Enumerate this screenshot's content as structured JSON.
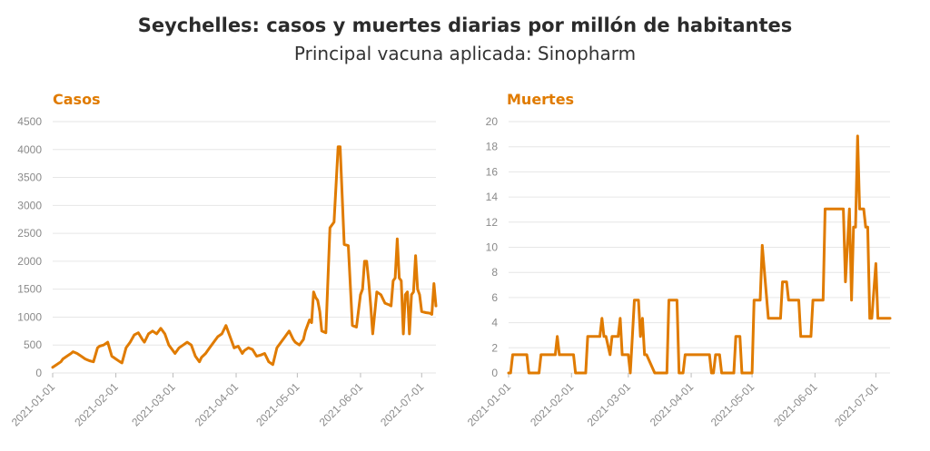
{
  "title": "Seychelles: casos y muertes diarias por millón de habitantes",
  "subtitle": "Principal vacuna aplicada: Sinopharm",
  "accent_color": "#e07b00",
  "chart_data": [
    {
      "type": "line",
      "title": "Casos",
      "color": "#e07b00",
      "ylim": [
        0,
        4500
      ],
      "yticks": [
        0,
        500,
        1000,
        1500,
        2000,
        2500,
        3000,
        3500,
        4000,
        4500
      ],
      "xlim": [
        "2021-01-01",
        "2021-07-08"
      ],
      "xticks": [
        "2021-01-01",
        "2021-02-01",
        "2021-03-01",
        "2021-04-01",
        "2021-05-01",
        "2021-06-01",
        "2021-07-01"
      ],
      "x": [
        "2021-01-01",
        "2021-01-03",
        "2021-01-05",
        "2021-01-06",
        "2021-01-08",
        "2021-01-10",
        "2021-01-11",
        "2021-01-13",
        "2021-01-15",
        "2021-01-17",
        "2021-01-19",
        "2021-01-21",
        "2021-01-23",
        "2021-01-24",
        "2021-01-26",
        "2021-01-28",
        "2021-01-30",
        "2021-02-01",
        "2021-02-03",
        "2021-02-04",
        "2021-02-06",
        "2021-02-08",
        "2021-02-10",
        "2021-02-12",
        "2021-02-14",
        "2021-02-15",
        "2021-02-17",
        "2021-02-19",
        "2021-02-21",
        "2021-02-23",
        "2021-02-25",
        "2021-02-27",
        "2021-03-01",
        "2021-03-02",
        "2021-03-04",
        "2021-03-06",
        "2021-03-08",
        "2021-03-10",
        "2021-03-12",
        "2021-03-14",
        "2021-03-15",
        "2021-03-17",
        "2021-03-19",
        "2021-03-21",
        "2021-03-23",
        "2021-03-25",
        "2021-03-27",
        "2021-03-29",
        "2021-03-31",
        "2021-04-02",
        "2021-04-04",
        "2021-04-05",
        "2021-04-07",
        "2021-04-09",
        "2021-04-11",
        "2021-04-13",
        "2021-04-15",
        "2021-04-17",
        "2021-04-19",
        "2021-04-21",
        "2021-04-23",
        "2021-04-25",
        "2021-04-27",
        "2021-04-29",
        "2021-04-30",
        "2021-05-02",
        "2021-05-04",
        "2021-05-05",
        "2021-05-07",
        "2021-05-08",
        "2021-05-09",
        "2021-05-10",
        "2021-05-11",
        "2021-05-12",
        "2021-05-13",
        "2021-05-15",
        "2021-05-17",
        "2021-05-19",
        "2021-05-21",
        "2021-05-22",
        "2021-05-24",
        "2021-05-26",
        "2021-05-28",
        "2021-05-30",
        "2021-06-01",
        "2021-06-02",
        "2021-06-03",
        "2021-06-04",
        "2021-06-05",
        "2021-06-06",
        "2021-06-07",
        "2021-06-09",
        "2021-06-11",
        "2021-06-13",
        "2021-06-15",
        "2021-06-16",
        "2021-06-17",
        "2021-06-18",
        "2021-06-19",
        "2021-06-20",
        "2021-06-21",
        "2021-06-22",
        "2021-06-23",
        "2021-06-24",
        "2021-06-25",
        "2021-06-26",
        "2021-06-27",
        "2021-06-28",
        "2021-06-29",
        "2021-06-30",
        "2021-07-01",
        "2021-07-03",
        "2021-07-05",
        "2021-07-06",
        "2021-07-07",
        "2021-07-08"
      ],
      "y": [
        100,
        150,
        200,
        250,
        300,
        350,
        380,
        350,
        300,
        250,
        220,
        200,
        450,
        480,
        500,
        550,
        300,
        250,
        200,
        180,
        450,
        550,
        680,
        720,
        600,
        550,
        700,
        750,
        700,
        800,
        700,
        500,
        400,
        350,
        450,
        500,
        550,
        500,
        300,
        200,
        280,
        350,
        450,
        550,
        650,
        700,
        850,
        650,
        450,
        480,
        350,
        400,
        450,
        420,
        300,
        320,
        350,
        200,
        150,
        450,
        550,
        650,
        750,
        600,
        550,
        500,
        600,
        750,
        950,
        900,
        1450,
        1350,
        1300,
        1100,
        750,
        720,
        2600,
        2700,
        4050,
        4050,
        2300,
        2280,
        850,
        820,
        1400,
        1500,
        2000,
        2000,
        1650,
        1200,
        700,
        1450,
        1400,
        1250,
        1220,
        1200,
        1650,
        1700,
        2400,
        1700,
        1650,
        700,
        1400,
        1450,
        700,
        1400,
        1450,
        2100,
        1500,
        1400,
        1100,
        1080,
        1070,
        1050,
        1600,
        1200
      ]
    },
    {
      "type": "line",
      "title": "Muertes",
      "color": "#e07b00",
      "ylim": [
        0,
        20
      ],
      "yticks": [
        0,
        2,
        4,
        6,
        8,
        10,
        12,
        14,
        16,
        18,
        20
      ],
      "xlim": [
        "2021-01-01",
        "2021-07-08"
      ],
      "xticks": [
        "2021-01-01",
        "2021-02-01",
        "2021-03-01",
        "2021-04-01",
        "2021-05-01",
        "2021-06-01",
        "2021-07-01"
      ],
      "x": [
        "2021-01-01",
        "2021-01-02",
        "2021-01-03",
        "2021-01-10",
        "2021-01-11",
        "2021-01-16",
        "2021-01-17",
        "2021-01-24",
        "2021-01-25",
        "2021-01-26",
        "2021-01-27",
        "2021-01-28",
        "2021-02-01",
        "2021-02-02",
        "2021-02-03",
        "2021-02-08",
        "2021-02-09",
        "2021-02-10",
        "2021-02-11",
        "2021-02-15",
        "2021-02-16",
        "2021-02-17",
        "2021-02-18",
        "2021-02-20",
        "2021-02-21",
        "2021-02-24",
        "2021-02-25",
        "2021-02-26",
        "2021-02-27",
        "2021-03-01",
        "2021-03-02",
        "2021-03-03",
        "2021-03-04",
        "2021-03-05",
        "2021-03-06",
        "2021-03-07",
        "2021-03-08",
        "2021-03-09",
        "2021-03-10",
        "2021-03-14",
        "2021-03-15",
        "2021-03-20",
        "2021-03-21",
        "2021-03-25",
        "2021-03-26",
        "2021-03-28",
        "2021-03-29",
        "2021-04-10",
        "2021-04-11",
        "2021-04-12",
        "2021-04-13",
        "2021-04-15",
        "2021-04-16",
        "2021-04-22",
        "2021-04-23",
        "2021-04-25",
        "2021-04-26",
        "2021-05-01",
        "2021-05-02",
        "2021-05-05",
        "2021-05-06",
        "2021-05-09",
        "2021-05-10",
        "2021-05-15",
        "2021-05-16",
        "2021-05-18",
        "2021-05-19",
        "2021-05-24",
        "2021-05-25",
        "2021-05-30",
        "2021-05-31",
        "2021-06-01",
        "2021-06-02",
        "2021-06-05",
        "2021-06-06",
        "2021-06-15",
        "2021-06-16",
        "2021-06-18",
        "2021-06-19",
        "2021-06-20",
        "2021-06-21",
        "2021-06-22",
        "2021-06-23",
        "2021-06-25",
        "2021-06-26",
        "2021-06-27",
        "2021-06-28",
        "2021-06-29",
        "2021-07-01",
        "2021-07-02",
        "2021-07-03",
        "2021-07-05",
        "2021-07-06",
        "2021-07-07",
        "2021-07-08"
      ],
      "y": [
        0,
        0,
        1.45,
        1.45,
        0,
        0,
        1.45,
        1.45,
        2.9,
        1.45,
        1.45,
        1.45,
        1.45,
        1.45,
        0,
        0,
        2.9,
        2.9,
        2.9,
        2.9,
        4.35,
        2.9,
        2.9,
        1.45,
        2.9,
        2.9,
        4.35,
        1.45,
        1.45,
        1.45,
        0,
        2.9,
        5.8,
        5.8,
        5.8,
        2.9,
        4.35,
        1.45,
        1.45,
        0,
        0,
        0,
        5.8,
        5.8,
        0,
        0,
        1.45,
        1.45,
        0,
        0,
        1.45,
        1.45,
        0,
        0,
        2.9,
        2.9,
        0,
        0,
        5.8,
        5.8,
        10.15,
        4.35,
        4.35,
        4.35,
        7.25,
        7.25,
        5.8,
        5.8,
        2.9,
        2.9,
        5.8,
        5.8,
        5.8,
        5.8,
        13.05,
        13.05,
        7.25,
        13.05,
        5.8,
        11.6,
        11.6,
        18.85,
        13.05,
        13.05,
        11.6,
        11.6,
        4.35,
        4.35,
        8.7,
        4.35,
        4.35,
        4.35,
        4.35,
        4.35,
        4.35
      ]
    }
  ]
}
